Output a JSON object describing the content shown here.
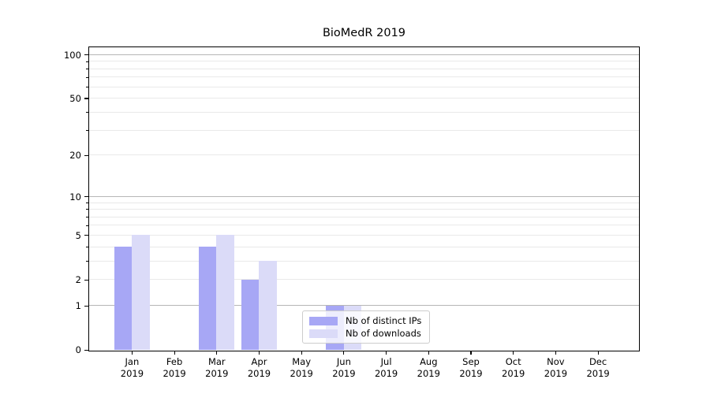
{
  "chart_data": {
    "type": "bar",
    "title": "BioMedR 2019",
    "categories": [
      "Jan 2019",
      "Feb 2019",
      "Mar 2019",
      "Apr 2019",
      "May 2019",
      "Jun 2019",
      "Jul 2019",
      "Aug 2019",
      "Sep 2019",
      "Oct 2019",
      "Nov 2019",
      "Dec 2019"
    ],
    "month_line1": [
      "Jan",
      "Feb",
      "Mar",
      "Apr",
      "May",
      "Jun",
      "Jul",
      "Aug",
      "Sep",
      "Oct",
      "Nov",
      "Dec"
    ],
    "month_line2": [
      "2019",
      "2019",
      "2019",
      "2019",
      "2019",
      "2019",
      "2019",
      "2019",
      "2019",
      "2019",
      "2019",
      "2019"
    ],
    "series": [
      {
        "name": "Nb of distinct IPs",
        "key": "distinct-ips",
        "color": "#a7a7f5",
        "values": [
          4,
          0,
          4,
          2,
          0,
          1,
          0,
          0,
          0,
          0,
          0,
          0
        ]
      },
      {
        "name": "Nb of downloads",
        "key": "downloads",
        "color": "#dbdbf8",
        "values": [
          5,
          0,
          5,
          3,
          0,
          1,
          0,
          0,
          0,
          0,
          0,
          0
        ]
      }
    ],
    "yscale": "log1p",
    "ylim": [
      0,
      112
    ],
    "y_tick_values": [
      0,
      1,
      2,
      5,
      10,
      20,
      50,
      100
    ],
    "y_tick_labels": [
      "0",
      "1",
      "2",
      "5",
      "10",
      "20",
      "50",
      "100"
    ],
    "y_major_grid_values": [
      1,
      10,
      100
    ],
    "y_minor_grid_values": [
      2,
      3,
      4,
      5,
      6,
      7,
      8,
      9,
      20,
      30,
      40,
      50,
      60,
      70,
      80,
      90
    ],
    "grid": true,
    "legend": {
      "labels": [
        "Nb of distinct IPs",
        "Nb of downloads"
      ],
      "position": "lower center"
    }
  },
  "colors": {
    "background": "#ffffff",
    "axis": "#000000",
    "text": "#000000",
    "grid_major": "#b6b6b6",
    "grid_minor": "#e9e9e9",
    "legend_border": "#cccccc",
    "series_distinct_ips": "#a7a7f5",
    "series_downloads": "#dbdbf8"
  }
}
